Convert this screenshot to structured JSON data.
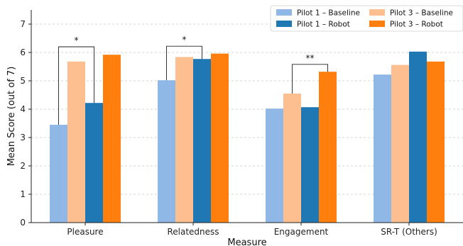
{
  "chart_data": {
    "type": "bar",
    "xlabel": "Measure",
    "ylabel": "Mean Score (out of 7)",
    "ylim": [
      0,
      7.5
    ],
    "yticks": [
      0,
      1,
      2,
      3,
      4,
      5,
      6,
      7
    ],
    "grid": "horizontal dashed",
    "legend_position": "top-right",
    "categories": [
      "Pleasure",
      "Relatedness",
      "Engagement",
      "SR-T (Others)"
    ],
    "series": [
      {
        "name": "Pilot 1 – Baseline",
        "color": "#8fb8e6",
        "values": [
          3.45,
          5.02,
          4.02,
          5.22
        ]
      },
      {
        "name": "Pilot 3 – Baseline",
        "color": "#fdbf8f",
        "values": [
          5.68,
          5.84,
          4.55,
          5.56
        ]
      },
      {
        "name": "Pilot 1 – Robot",
        "color": "#1f77b4",
        "values": [
          4.22,
          5.77,
          4.07,
          6.03
        ]
      },
      {
        "name": "Pilot 3 – Robot",
        "color": "#ff7f0e",
        "values": [
          5.92,
          5.96,
          5.32,
          5.68
        ]
      }
    ],
    "significance": [
      {
        "category": 0,
        "from_series": 0,
        "to_series": 2,
        "label": "*",
        "level": 6.2
      },
      {
        "category": 1,
        "from_series": 0,
        "to_series": 2,
        "label": "*",
        "level": 6.22
      },
      {
        "category": 2,
        "from_series": 1,
        "to_series": 3,
        "label": "**",
        "level": 5.58
      }
    ],
    "legend_order": [
      0,
      2,
      1,
      3
    ]
  }
}
